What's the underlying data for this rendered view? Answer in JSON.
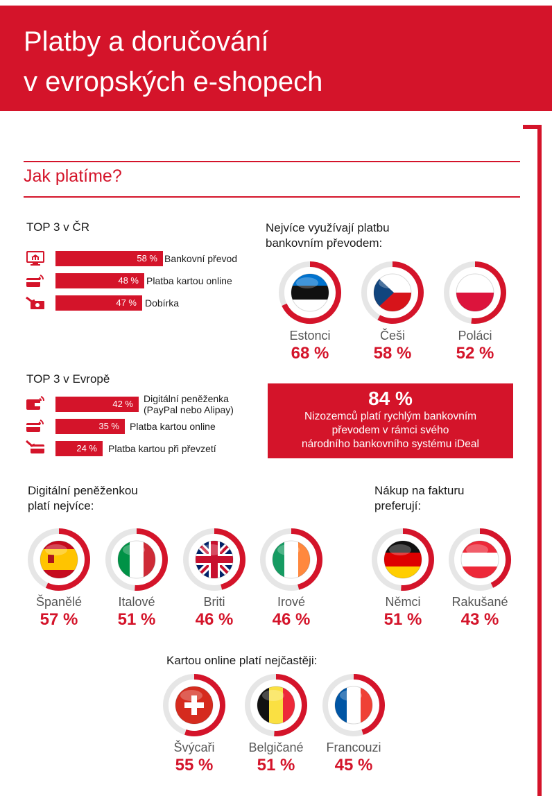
{
  "header": {
    "title_line1": "Platby a doručování",
    "title_line2": "v evropských e-shopech"
  },
  "section": {
    "title": "Jak platíme?"
  },
  "top3_cr": {
    "title": "TOP 3 v ČR",
    "bars": [
      {
        "value": 58,
        "value_label": "58 %",
        "label": "Bankovní převod",
        "icon": "bank-computer-icon"
      },
      {
        "value": 48,
        "value_label": "48 %",
        "label": "Platba kartou online",
        "icon": "card-wireless-icon"
      },
      {
        "value": 47,
        "value_label": "47 %",
        "label": "Dobírka",
        "icon": "cash-hand-icon"
      }
    ]
  },
  "bank_transfer": {
    "title_line1": "Nejvíce využívají platbu",
    "title_line2": "bankovním převodem:",
    "items": [
      {
        "name": "Estonci",
        "value": 68,
        "value_label": "68 %",
        "flag": "estonia"
      },
      {
        "name": "Češi",
        "value": 58,
        "value_label": "58 %",
        "flag": "czech"
      },
      {
        "name": "Poláci",
        "value": 52,
        "value_label": "52 %",
        "flag": "poland"
      }
    ]
  },
  "top3_eu": {
    "title": "TOP 3 v Evropě",
    "bars": [
      {
        "value": 42,
        "value_label": "42 %",
        "label_line1": "Digitální peněženka",
        "label_line2": "(PayPal nebo Alipay)",
        "icon": "digital-wallet-icon"
      },
      {
        "value": 35,
        "value_label": "35 %",
        "label_line1": "Platba kartou online",
        "label_line2": "",
        "icon": "card-wireless-icon"
      },
      {
        "value": 24,
        "value_label": "24 %",
        "label_line1": "Platba kartou při převzetí",
        "label_line2": "",
        "icon": "card-hand-icon"
      }
    ]
  },
  "netherlands": {
    "big": "84 %",
    "line1": "Nizozemců platí rychlým bankovním",
    "line2": "převodem v rámci svého",
    "line3": "národního bankovního systému iDeal"
  },
  "wallet": {
    "title_line1": "Digitální peněženkou",
    "title_line2": "platí nejvíce:",
    "items": [
      {
        "name": "Španělé",
        "value": 57,
        "value_label": "57 %",
        "flag": "spain"
      },
      {
        "name": "Italové",
        "value": 51,
        "value_label": "51 %",
        "flag": "italy"
      },
      {
        "name": "Briti",
        "value": 46,
        "value_label": "46 %",
        "flag": "uk"
      },
      {
        "name": "Irové",
        "value": 46,
        "value_label": "46 %",
        "flag": "ireland"
      }
    ]
  },
  "invoice": {
    "title_line1": "Nákup na fakturu",
    "title_line2": "preferují:",
    "items": [
      {
        "name": "Němci",
        "value": 51,
        "value_label": "51 %",
        "flag": "germany"
      },
      {
        "name": "Rakušané",
        "value": 43,
        "value_label": "43 %",
        "flag": "austria"
      }
    ]
  },
  "card_online": {
    "title": "Kartou online platí nejčastěji:",
    "items": [
      {
        "name": "Švýcaři",
        "value": 55,
        "value_label": "55 %",
        "flag": "switzerland"
      },
      {
        "name": "Belgičané",
        "value": 51,
        "value_label": "51 %",
        "flag": "belgium"
      },
      {
        "name": "Francouzi",
        "value": 45,
        "value_label": "45 %",
        "flag": "france"
      }
    ]
  },
  "colors": {
    "accent": "#d4142a",
    "ring_bg": "#e6e6e6"
  }
}
